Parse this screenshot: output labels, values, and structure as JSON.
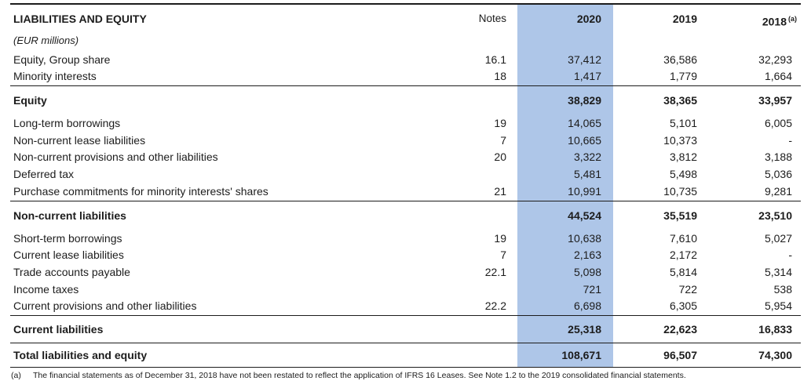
{
  "colors": {
    "highlight_2020_column": "#AEC6E8",
    "text": "#1C1C1C",
    "border": "#1C1C1C"
  },
  "table": {
    "header": {
      "title": "LIABILITIES AND EQUITY",
      "notes": "Notes",
      "y2020": "2020",
      "y2019": "2019",
      "y2018": "2018",
      "y2018_sup": "(a)"
    },
    "subheader": "(EUR millions)",
    "rows": [
      {
        "style": "item",
        "label": "Equity, Group share",
        "notes": "16.1",
        "y2020": "37,412",
        "y2019": "36,586",
        "y2018": "32,293"
      },
      {
        "style": "item",
        "label": "Minority interests",
        "notes": "18",
        "y2020": "1,417",
        "y2019": "1,779",
        "y2018": "1,664"
      },
      {
        "style": "subtotal",
        "label": "Equity",
        "notes": "",
        "y2020": "38,829",
        "y2019": "38,365",
        "y2018": "33,957"
      },
      {
        "style": "item",
        "label": "Long-term borrowings",
        "notes": "19",
        "y2020": "14,065",
        "y2019": "5,101",
        "y2018": "6,005"
      },
      {
        "style": "item",
        "label": "Non-current lease liabilities",
        "notes": "7",
        "y2020": "10,665",
        "y2019": "10,373",
        "y2018": "-"
      },
      {
        "style": "item",
        "label": "Non-current provisions and other liabilities",
        "notes": "20",
        "y2020": "3,322",
        "y2019": "3,812",
        "y2018": "3,188"
      },
      {
        "style": "item",
        "label": "Deferred tax",
        "notes": "",
        "y2020": "5,481",
        "y2019": "5,498",
        "y2018": "5,036"
      },
      {
        "style": "item",
        "label": "Purchase commitments for minority interests' shares",
        "notes": "21",
        "y2020": "10,991",
        "y2019": "10,735",
        "y2018": "9,281"
      },
      {
        "style": "subtotal",
        "label": "Non-current liabilities",
        "notes": "",
        "y2020": "44,524",
        "y2019": "35,519",
        "y2018": "23,510"
      },
      {
        "style": "item",
        "label": "Short-term borrowings",
        "notes": "19",
        "y2020": "10,638",
        "y2019": "7,610",
        "y2018": "5,027"
      },
      {
        "style": "item",
        "label": "Current lease liabilities",
        "notes": "7",
        "y2020": "2,163",
        "y2019": "2,172",
        "y2018": "-"
      },
      {
        "style": "item",
        "label": "Trade accounts payable",
        "notes": "22.1",
        "y2020": "5,098",
        "y2019": "5,814",
        "y2018": "5,314"
      },
      {
        "style": "item",
        "label": "Income taxes",
        "notes": "",
        "y2020": "721",
        "y2019": "722",
        "y2018": "538"
      },
      {
        "style": "item",
        "label": "Current provisions and other liabilities",
        "notes": "22.2",
        "y2020": "6,698",
        "y2019": "6,305",
        "y2018": "5,954"
      },
      {
        "style": "subtotal",
        "label": "Current liabilities",
        "notes": "",
        "y2020": "25,318",
        "y2019": "22,623",
        "y2018": "16,833"
      },
      {
        "style": "total",
        "label": "Total liabilities and equity",
        "notes": "",
        "y2020": "108,671",
        "y2019": "96,507",
        "y2018": "74,300"
      }
    ],
    "footnote": {
      "marker": "(a)",
      "text": "The financial statements as of December 31, 2018 have not been restated to reflect the application of IFRS 16 Leases. See Note 1.2 to the 2019 consolidated financial statements."
    }
  }
}
